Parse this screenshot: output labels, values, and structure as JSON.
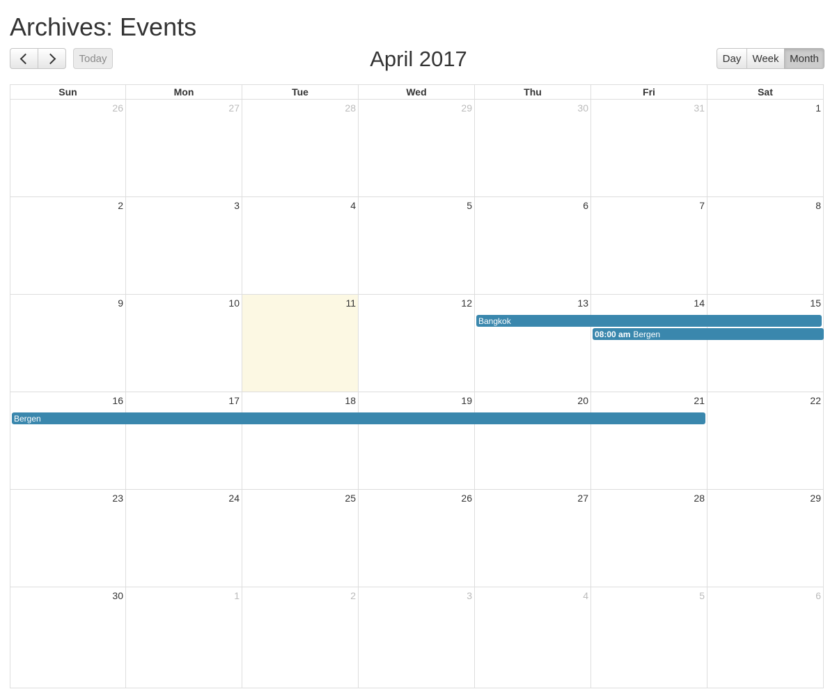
{
  "page": {
    "title": "Archives: Events"
  },
  "toolbar": {
    "prev_icon": "chevron-left-icon",
    "next_icon": "chevron-right-icon",
    "today_label": "Today",
    "title": "April 2017",
    "views": [
      "Day",
      "Week",
      "Month"
    ],
    "active_view": "Month"
  },
  "calendar": {
    "day_headers": [
      "Sun",
      "Mon",
      "Tue",
      "Wed",
      "Thu",
      "Fri",
      "Sat"
    ],
    "today_highlight_color": "#fcf8e3",
    "event_color": "#3a87ad",
    "weeks": [
      [
        "26",
        "27",
        "28",
        "29",
        "30",
        "31",
        "1"
      ],
      [
        "2",
        "3",
        "4",
        "5",
        "6",
        "7",
        "8"
      ],
      [
        "9",
        "10",
        "11",
        "12",
        "13",
        "14",
        "15"
      ],
      [
        "16",
        "17",
        "18",
        "19",
        "20",
        "21",
        "22"
      ],
      [
        "23",
        "24",
        "25",
        "26",
        "27",
        "28",
        "29"
      ],
      [
        "30",
        "1",
        "2",
        "3",
        "4",
        "5",
        "6"
      ]
    ],
    "other_month": [
      [
        true,
        true,
        true,
        true,
        true,
        true,
        false
      ],
      [
        false,
        false,
        false,
        false,
        false,
        false,
        false
      ],
      [
        false,
        false,
        false,
        false,
        false,
        false,
        false
      ],
      [
        false,
        false,
        false,
        false,
        false,
        false,
        false
      ],
      [
        false,
        false,
        false,
        false,
        false,
        false,
        false
      ],
      [
        false,
        true,
        true,
        true,
        true,
        true,
        true
      ]
    ],
    "today": {
      "week": 2,
      "day": 2
    },
    "events": [
      {
        "title": "Bangkok",
        "time": "",
        "week": 2,
        "start_day": 4,
        "end_day": 6,
        "lane": 0
      },
      {
        "title": "Bergen",
        "time": "08:00 am",
        "week": 2,
        "start_day": 5,
        "end_day": 6,
        "lane": 1
      },
      {
        "title": "Bergen",
        "time": "",
        "week": 3,
        "start_day": 0,
        "end_day": 5,
        "lane": 0
      }
    ]
  }
}
